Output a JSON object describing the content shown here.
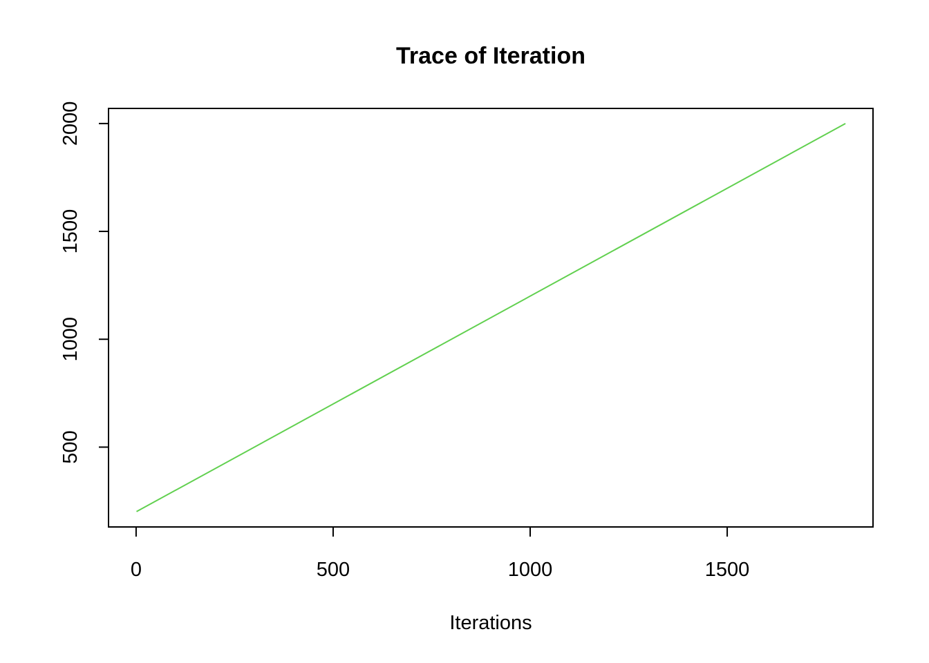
{
  "chart_data": {
    "type": "line",
    "title": "Trace of Iteration",
    "xlabel": "Iterations",
    "ylabel": "",
    "xlim": [
      -70,
      1870
    ],
    "ylim": [
      130,
      2070
    ],
    "x_ticks": [
      0,
      500,
      1000,
      1500
    ],
    "x_tick_labels": [
      "0",
      "500",
      "1000",
      "1500"
    ],
    "y_ticks": [
      500,
      1000,
      1500,
      2000
    ],
    "y_tick_labels": [
      "500",
      "1000",
      "1500",
      "2000"
    ],
    "grid": false,
    "legend": "none",
    "series": [
      {
        "color": "#61D04F",
        "x": [
          1,
          1800
        ],
        "y": [
          201,
          2000
        ]
      }
    ]
  }
}
